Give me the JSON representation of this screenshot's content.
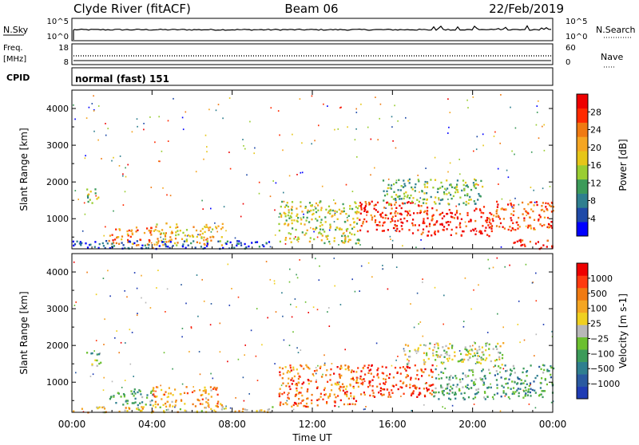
{
  "header": {
    "station": "Clyde River (fitACF)",
    "beam": "Beam 06",
    "date": "22/Feb/2019"
  },
  "strips": {
    "nsky": {
      "label": "N.Sky",
      "ticks": [
        "10^5",
        "10^0"
      ],
      "right_ticks": [
        "10^5",
        "10^0"
      ],
      "right_label": "N.Search"
    },
    "freq": {
      "label_line1": "Freq.",
      "label_line2": "[MHz]",
      "ticks": [
        "18",
        "8"
      ],
      "right_ticks": [
        "60",
        "0"
      ],
      "right_label": "Nave"
    },
    "cpid": {
      "label": "CPID",
      "text": "normal (fast) 151"
    }
  },
  "colors": {
    "power_scale": [
      "#0000ff",
      "#1f4aa8",
      "#2f7f8f",
      "#3c9b5a",
      "#9acd32",
      "#e6c619",
      "#f5a623",
      "#f07a12",
      "#ff2a00",
      "#ee0000"
    ],
    "velocity_scale": [
      "#1f3cb4",
      "#2a5aa0",
      "#2f7f8f",
      "#3c9b5a",
      "#6cc030",
      "#b8b8b8",
      "#f0d020",
      "#f5a623",
      "#f07a12",
      "#ff3a10",
      "#ee0000"
    ]
  },
  "chart_data": [
    {
      "type": "heatmap",
      "title": "Power",
      "xlabel": "Time UT",
      "ylabel": "Slant Range [km]",
      "x_ticks": [
        "00:00",
        "04:00",
        "08:00",
        "12:00",
        "16:00",
        "20:00",
        "00:00"
      ],
      "x_hours": [
        0,
        4,
        8,
        12,
        16,
        20,
        24
      ],
      "xlim": [
        0,
        24
      ],
      "y_ticks": [
        1000,
        2000,
        3000,
        4000
      ],
      "ylim": [
        180,
        4500
      ],
      "colorbar": {
        "label": "Power [dB]",
        "ticks": [
          4,
          8,
          12,
          16,
          20,
          24,
          28
        ],
        "range": [
          0,
          32
        ]
      },
      "regions": [
        {
          "t0": 0.7,
          "t1": 1.4,
          "r0": 1450,
          "r1": 1850,
          "level": 0.45
        },
        {
          "t0": 1.8,
          "t1": 4.0,
          "r0": 300,
          "r1": 800,
          "level": 0.75
        },
        {
          "t0": 4.0,
          "t1": 7.5,
          "r0": 300,
          "r1": 900,
          "level": 0.6
        },
        {
          "t0": 0.0,
          "t1": 10.0,
          "r0": 200,
          "r1": 420,
          "level": 0.15
        },
        {
          "t0": 10.3,
          "t1": 14.3,
          "r0": 350,
          "r1": 1500,
          "level": 0.5
        },
        {
          "t0": 14.3,
          "t1": 17.5,
          "r0": 600,
          "r1": 1500,
          "level": 0.85
        },
        {
          "t0": 17.5,
          "t1": 21.0,
          "r0": 550,
          "r1": 1350,
          "level": 0.92
        },
        {
          "t0": 21.0,
          "t1": 24.0,
          "r0": 700,
          "r1": 1500,
          "level": 0.8
        },
        {
          "t0": 15.5,
          "t1": 20.5,
          "r0": 1400,
          "r1": 2100,
          "level": 0.4
        },
        {
          "t0": 22.0,
          "t1": 24.0,
          "r0": 200,
          "r1": 450,
          "level": 0.95
        }
      ]
    },
    {
      "type": "heatmap",
      "title": "Velocity",
      "xlabel": "Time UT",
      "ylabel": "Slant Range [km]",
      "x_ticks": [
        "00:00",
        "04:00",
        "08:00",
        "12:00",
        "16:00",
        "20:00",
        "00:00"
      ],
      "x_hours": [
        0,
        4,
        8,
        12,
        16,
        20,
        24
      ],
      "xlim": [
        0,
        24
      ],
      "y_ticks": [
        1000,
        2000,
        3000,
        4000
      ],
      "ylim": [
        180,
        4500
      ],
      "colorbar": {
        "label": "Velocity [m s-1]",
        "ticks": [
          "1000",
          "500",
          "100",
          "25",
          "−25",
          "−100",
          "−500",
          "−1000"
        ]
      },
      "regions": [
        {
          "t0": 0.7,
          "t1": 1.4,
          "r0": 1450,
          "r1": 1850,
          "level": 0.4
        },
        {
          "t0": 1.8,
          "t1": 4.0,
          "r0": 400,
          "r1": 850,
          "level": 0.35
        },
        {
          "t0": 4.0,
          "t1": 7.5,
          "r0": 350,
          "r1": 900,
          "level": 0.7
        },
        {
          "t0": 0.0,
          "t1": 10.0,
          "r0": 200,
          "r1": 350,
          "level": 0.6
        },
        {
          "t0": 10.3,
          "t1": 14.3,
          "r0": 350,
          "r1": 1500,
          "level": 0.78
        },
        {
          "t0": 14.3,
          "t1": 18.0,
          "r0": 600,
          "r1": 1500,
          "level": 0.88
        },
        {
          "t0": 18.0,
          "t1": 21.0,
          "r0": 550,
          "r1": 1400,
          "level": 0.35
        },
        {
          "t0": 21.0,
          "t1": 24.0,
          "r0": 600,
          "r1": 1500,
          "level": 0.3
        },
        {
          "t0": 16.5,
          "t1": 21.5,
          "r0": 1500,
          "r1": 2100,
          "level": 0.5
        }
      ]
    }
  ]
}
